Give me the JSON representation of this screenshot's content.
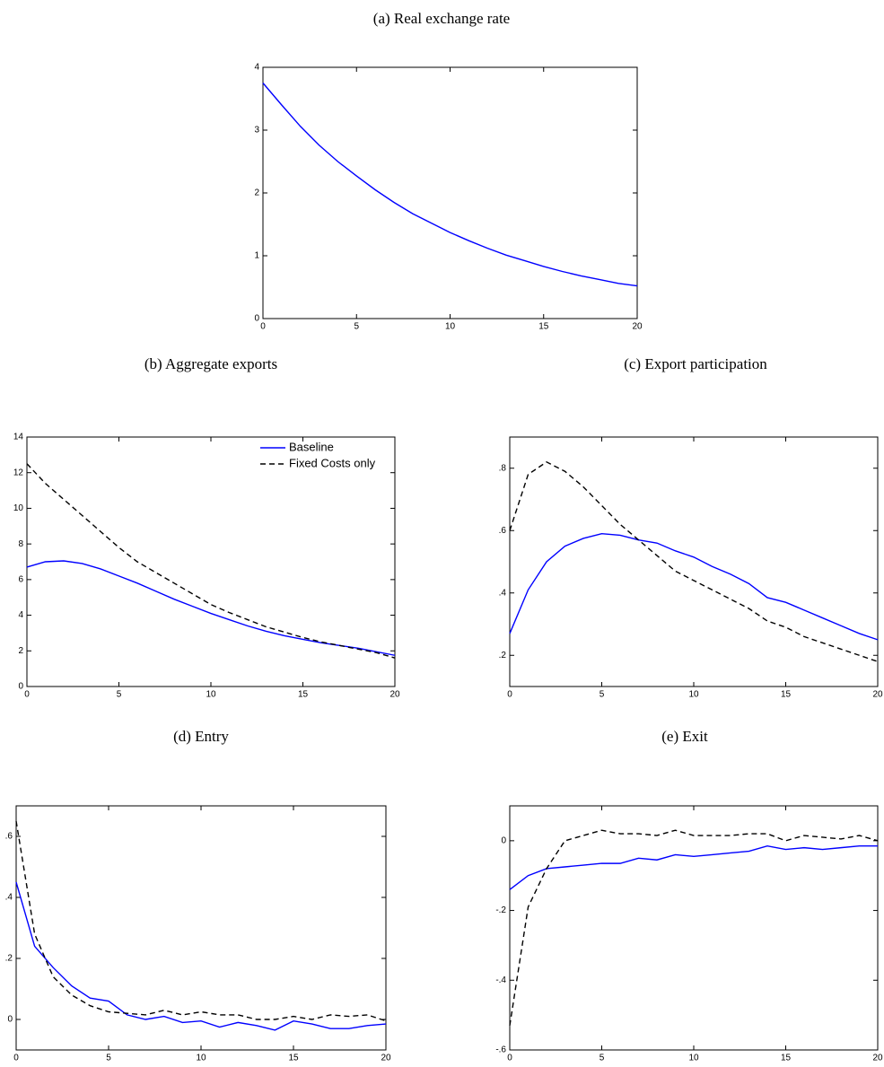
{
  "chart_data": [
    {
      "type": "line",
      "title": "(a) Real exchange rate",
      "x": [
        0,
        1,
        2,
        3,
        4,
        5,
        6,
        7,
        8,
        9,
        10,
        11,
        12,
        13,
        14,
        15,
        16,
        17,
        18,
        19,
        20
      ],
      "series": [
        {
          "name": "Baseline",
          "color": "#0000ff",
          "line_style": "solid",
          "values": [
            3.75,
            3.4,
            3.06,
            2.76,
            2.5,
            2.27,
            2.05,
            1.85,
            1.67,
            1.52,
            1.37,
            1.24,
            1.12,
            1.01,
            0.92,
            0.83,
            0.75,
            0.68,
            0.62,
            0.56,
            0.52
          ]
        }
      ],
      "xlim": [
        0,
        20
      ],
      "xticks": [
        0,
        5,
        10,
        15,
        20
      ],
      "ylim": [
        0,
        4
      ],
      "yticks": [
        0,
        1,
        2,
        3,
        4
      ]
    },
    {
      "type": "line",
      "title": "(b) Aggregate exports",
      "x": [
        0,
        1,
        2,
        3,
        4,
        5,
        6,
        7,
        8,
        9,
        10,
        11,
        12,
        13,
        14,
        15,
        16,
        17,
        18,
        19,
        20
      ],
      "series": [
        {
          "name": "Baseline",
          "color": "#0000ff",
          "line_style": "solid",
          "values": [
            6.7,
            7.0,
            7.05,
            6.9,
            6.6,
            6.2,
            5.8,
            5.35,
            4.9,
            4.5,
            4.1,
            3.75,
            3.4,
            3.1,
            2.85,
            2.65,
            2.45,
            2.3,
            2.15,
            1.95,
            1.75
          ]
        },
        {
          "name": "Fixed Costs only",
          "color": "#000000",
          "line_style": "dashed",
          "values": [
            12.5,
            11.4,
            10.5,
            9.6,
            8.7,
            7.8,
            7.0,
            6.4,
            5.8,
            5.2,
            4.6,
            4.15,
            3.75,
            3.35,
            3.05,
            2.75,
            2.5,
            2.3,
            2.1,
            1.9,
            1.6
          ]
        }
      ],
      "legend": "upper right",
      "xlim": [
        0,
        20
      ],
      "xticks": [
        0,
        5,
        10,
        15,
        20
      ],
      "ylim": [
        0,
        14
      ],
      "yticks": [
        0,
        2,
        4,
        6,
        8,
        10,
        12,
        14
      ]
    },
    {
      "type": "line",
      "title": "(c) Export participation",
      "x": [
        0,
        1,
        2,
        3,
        4,
        5,
        6,
        7,
        8,
        9,
        10,
        11,
        12,
        13,
        14,
        15,
        16,
        17,
        18,
        19,
        20
      ],
      "series": [
        {
          "color": "#0000ff",
          "line_style": "solid",
          "values": [
            0.27,
            0.41,
            0.5,
            0.55,
            0.575,
            0.59,
            0.585,
            0.57,
            0.56,
            0.535,
            0.515,
            0.485,
            0.46,
            0.43,
            0.385,
            0.37,
            0.345,
            0.32,
            0.295,
            0.27,
            0.25
          ]
        },
        {
          "color": "#000000",
          "line_style": "dashed",
          "values": [
            0.6,
            0.78,
            0.82,
            0.79,
            0.74,
            0.68,
            0.62,
            0.57,
            0.52,
            0.47,
            0.44,
            0.41,
            0.38,
            0.35,
            0.31,
            0.29,
            0.26,
            0.24,
            0.22,
            0.2,
            0.18
          ]
        }
      ],
      "xlim": [
        0,
        20
      ],
      "xticks": [
        0,
        5,
        10,
        15,
        20
      ],
      "ylim": [
        0.1,
        0.9
      ],
      "yticks": [
        {
          "value": 0.2,
          "label": ".2"
        },
        {
          "value": 0.4,
          "label": ".4"
        },
        {
          "value": 0.6,
          "label": ".6"
        },
        {
          "value": 0.8,
          "label": ".8"
        }
      ]
    },
    {
      "type": "line",
      "title": "(d) Entry",
      "x": [
        0,
        1,
        2,
        3,
        4,
        5,
        6,
        7,
        8,
        9,
        10,
        11,
        12,
        13,
        14,
        15,
        16,
        17,
        18,
        19,
        20
      ],
      "series": [
        {
          "color": "#0000ff",
          "line_style": "solid",
          "values": [
            0.45,
            0.24,
            0.17,
            0.11,
            0.07,
            0.06,
            0.015,
            0,
            0.01,
            -0.01,
            -0.005,
            -0.025,
            -0.01,
            -0.02,
            -0.035,
            -0.005,
            -0.015,
            -0.03,
            -0.03,
            -0.02,
            -0.015
          ]
        },
        {
          "color": "#000000",
          "line_style": "dashed",
          "values": [
            0.65,
            0.28,
            0.14,
            0.08,
            0.045,
            0.025,
            0.02,
            0.015,
            0.03,
            0.015,
            0.025,
            0.015,
            0.015,
            0,
            0,
            0.01,
            0,
            0.015,
            0.01,
            0.015,
            -0.005
          ]
        }
      ],
      "xlim": [
        0,
        20
      ],
      "xticks": [
        0,
        5,
        10,
        15,
        20
      ],
      "ylim": [
        -0.1,
        0.7
      ],
      "yticks": [
        0,
        {
          "value": 0.2,
          "label": ".2"
        },
        {
          "value": 0.4,
          "label": ".4"
        },
        {
          "value": 0.6,
          "label": ".6"
        }
      ]
    },
    {
      "type": "line",
      "title": "(e) Exit",
      "x": [
        0,
        1,
        2,
        3,
        4,
        5,
        6,
        7,
        8,
        9,
        10,
        11,
        12,
        13,
        14,
        15,
        16,
        17,
        18,
        19,
        20
      ],
      "series": [
        {
          "color": "#0000ff",
          "line_style": "solid",
          "values": [
            -0.14,
            -0.1,
            -0.08,
            -0.075,
            -0.07,
            -0.065,
            -0.065,
            -0.05,
            -0.055,
            -0.04,
            -0.045,
            -0.04,
            -0.035,
            -0.03,
            -0.015,
            -0.025,
            -0.02,
            -0.025,
            -0.02,
            -0.015,
            -0.015
          ]
        },
        {
          "color": "#000000",
          "line_style": "dashed",
          "values": [
            -0.53,
            -0.19,
            -0.08,
            0,
            0.015,
            0.03,
            0.02,
            0.02,
            0.015,
            0.03,
            0.015,
            0.015,
            0.015,
            0.02,
            0.02,
            0,
            0.015,
            0.01,
            0.005,
            0.015,
            0
          ]
        }
      ],
      "xlim": [
        0,
        20
      ],
      "xticks": [
        0,
        5,
        10,
        15,
        20
      ],
      "ylim": [
        -0.6,
        0.1
      ],
      "yticks": [
        {
          "value": -0.6,
          "label": "-.6"
        },
        {
          "value": -0.4,
          "label": "-.4"
        },
        {
          "value": -0.2,
          "label": "-.2"
        },
        0
      ]
    }
  ]
}
